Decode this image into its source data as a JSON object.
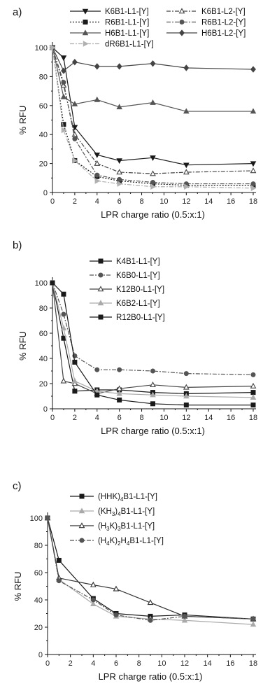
{
  "chart_data": [
    {
      "type": "line",
      "panel_label": "a)",
      "xlabel": "LPR charge ratio (0.5:x:1)",
      "ylabel": "% RFU",
      "xlim": [
        0,
        18
      ],
      "ylim": [
        0,
        100
      ],
      "xticks": [
        0,
        2,
        4,
        6,
        8,
        10,
        12,
        14,
        16,
        18
      ],
      "yticks": [
        0,
        20,
        40,
        60,
        80,
        100
      ],
      "legend_position": "top",
      "series": [
        {
          "name": "K6B1-L1-[Y]",
          "color": "#1a1a1a",
          "marker": "triangle-down",
          "dash": "solid",
          "x": [
            0,
            1,
            2,
            4,
            6,
            9,
            12,
            18
          ],
          "y": [
            100,
            93,
            45,
            26,
            22,
            24,
            19,
            20
          ]
        },
        {
          "name": "K6B1-L2-[Y]",
          "color": "#444444",
          "marker": "triangle-open",
          "dash": "dashdot",
          "x": [
            0,
            1,
            2,
            4,
            6,
            9,
            12,
            18
          ],
          "y": [
            100,
            74,
            40,
            20,
            14,
            13,
            14,
            15
          ]
        },
        {
          "name": "R6B1-L1-[Y]",
          "color": "#1a1a1a",
          "marker": "square",
          "dash": "dot",
          "x": [
            0,
            1,
            2,
            4,
            6,
            9,
            12,
            18
          ],
          "y": [
            100,
            47,
            22,
            11,
            8,
            6,
            5,
            5
          ]
        },
        {
          "name": "R6B1-L2-[Y]",
          "color": "#555555",
          "marker": "circle",
          "dash": "dashdot",
          "x": [
            0,
            1,
            2,
            4,
            6,
            9,
            12,
            18
          ],
          "y": [
            100,
            76,
            37,
            12,
            9,
            7,
            6,
            6
          ]
        },
        {
          "name": "H6B1-L1-[Y]",
          "color": "#555555",
          "marker": "triangle",
          "dash": "solid",
          "x": [
            0,
            1,
            2,
            4,
            6,
            9,
            12,
            18
          ],
          "y": [
            100,
            66,
            61,
            64,
            59,
            62,
            56,
            56
          ]
        },
        {
          "name": "H6B1-L2-[Y]",
          "color": "#444444",
          "marker": "diamond",
          "dash": "solid",
          "x": [
            0,
            1,
            2,
            4,
            6,
            9,
            12,
            18
          ],
          "y": [
            100,
            84,
            90,
            87,
            87,
            89,
            86,
            85
          ]
        },
        {
          "name": "dR6B1-L1-[Y]",
          "color": "#b0b0b0",
          "marker": "triangle-right",
          "dash": "dashdot",
          "x": [
            0,
            1,
            2,
            4,
            6,
            9,
            12,
            18
          ],
          "y": [
            100,
            43,
            22,
            8,
            6,
            4,
            4,
            3
          ]
        }
      ]
    },
    {
      "type": "line",
      "panel_label": "b)",
      "xlabel": "LPR charge ratio (0.5:x:1)",
      "ylabel": "% RFU",
      "xlim": [
        0,
        18
      ],
      "ylim": [
        0,
        100
      ],
      "xticks": [
        0,
        2,
        4,
        6,
        8,
        10,
        12,
        14,
        16,
        18
      ],
      "yticks": [
        0,
        20,
        40,
        60,
        80,
        100
      ],
      "legend_position": "top-right",
      "series": [
        {
          "name": "K4B1-L1-[Y]",
          "color": "#1a1a1a",
          "marker": "square",
          "dash": "solid",
          "x": [
            0,
            1,
            2,
            4,
            6,
            9,
            12,
            18
          ],
          "y": [
            100,
            56,
            14,
            15,
            15,
            13,
            12,
            13
          ]
        },
        {
          "name": "K6B0-L1-[Y]",
          "color": "#555555",
          "marker": "circle",
          "dash": "dashdot",
          "x": [
            0,
            1,
            2,
            4,
            6,
            9,
            12,
            18
          ],
          "y": [
            100,
            75,
            42,
            31,
            31,
            30,
            28,
            27
          ]
        },
        {
          "name": "K12B0-L1-[Y]",
          "color": "#444444",
          "marker": "triangle-open",
          "dash": "solid",
          "x": [
            0,
            1,
            2,
            4,
            6,
            9,
            12,
            18
          ],
          "y": [
            100,
            22,
            20,
            12,
            16,
            19,
            17,
            18
          ]
        },
        {
          "name": "K6B2-L1-[Y]",
          "color": "#aaaaaa",
          "marker": "triangle",
          "dash": "solid",
          "x": [
            0,
            1,
            2,
            4,
            6,
            9,
            12,
            18
          ],
          "y": [
            100,
            64,
            22,
            14,
            12,
            11,
            10,
            9
          ]
        },
        {
          "name": "R12B0-L1-[Y]",
          "color": "#1a1a1a",
          "marker": "square",
          "dash": "solid",
          "x": [
            0,
            1,
            2,
            4,
            6,
            9,
            12,
            18
          ],
          "y": [
            100,
            91,
            37,
            11,
            7,
            4,
            3,
            3
          ]
        }
      ]
    },
    {
      "type": "line",
      "panel_label": "c)",
      "xlabel": "LPR charge ratio (0.5:x:1)",
      "ylabel": "% RFU",
      "xlim": [
        0,
        18
      ],
      "ylim": [
        0,
        100
      ],
      "xticks": [
        0,
        2,
        4,
        6,
        8,
        10,
        12,
        14,
        16,
        18
      ],
      "yticks": [
        0,
        20,
        40,
        60,
        80,
        100
      ],
      "legend_position": "top-right",
      "series": [
        {
          "name": "(HHK)",
          "sub1": "4",
          "name2": "B1-L1-[Y]",
          "sub2": "",
          "name3": "",
          "color": "#1a1a1a",
          "marker": "square",
          "dash": "solid",
          "x": [
            0,
            1,
            4,
            6,
            9,
            12,
            18
          ],
          "y": [
            100,
            69,
            41,
            30,
            28,
            29,
            26
          ]
        },
        {
          "name": "(KH",
          "sub1": "3",
          "name2": ")",
          "sub2": "4",
          "name3": "B1-L1-[Y]",
          "color": "#aaaaaa",
          "marker": "triangle",
          "dash": "solid",
          "x": [
            0,
            1,
            4,
            6,
            9,
            12,
            18
          ],
          "y": [
            100,
            55,
            37,
            28,
            26,
            25,
            22
          ]
        },
        {
          "name": "(H",
          "sub1": "3",
          "name2": "K)",
          "sub2": "3",
          "name3": "B1-L1-[Y]",
          "color": "#333333",
          "marker": "triangle-open",
          "dash": "solid",
          "x": [
            0,
            1,
            4,
            6,
            9,
            12,
            18
          ],
          "y": [
            100,
            56,
            51,
            48,
            38,
            28,
            26
          ]
        },
        {
          "name": "(H",
          "sub1": "4",
          "name2": "K)",
          "sub2": "2",
          "name3": "H",
          "sub3": "4",
          "name4": "B1-L1-[Y]",
          "color": "#555555",
          "marker": "circle",
          "dash": "dashdot",
          "x": [
            0,
            1,
            4,
            6,
            9,
            12,
            18
          ],
          "y": [
            100,
            54,
            40,
            29,
            25,
            28,
            26
          ]
        }
      ]
    }
  ]
}
